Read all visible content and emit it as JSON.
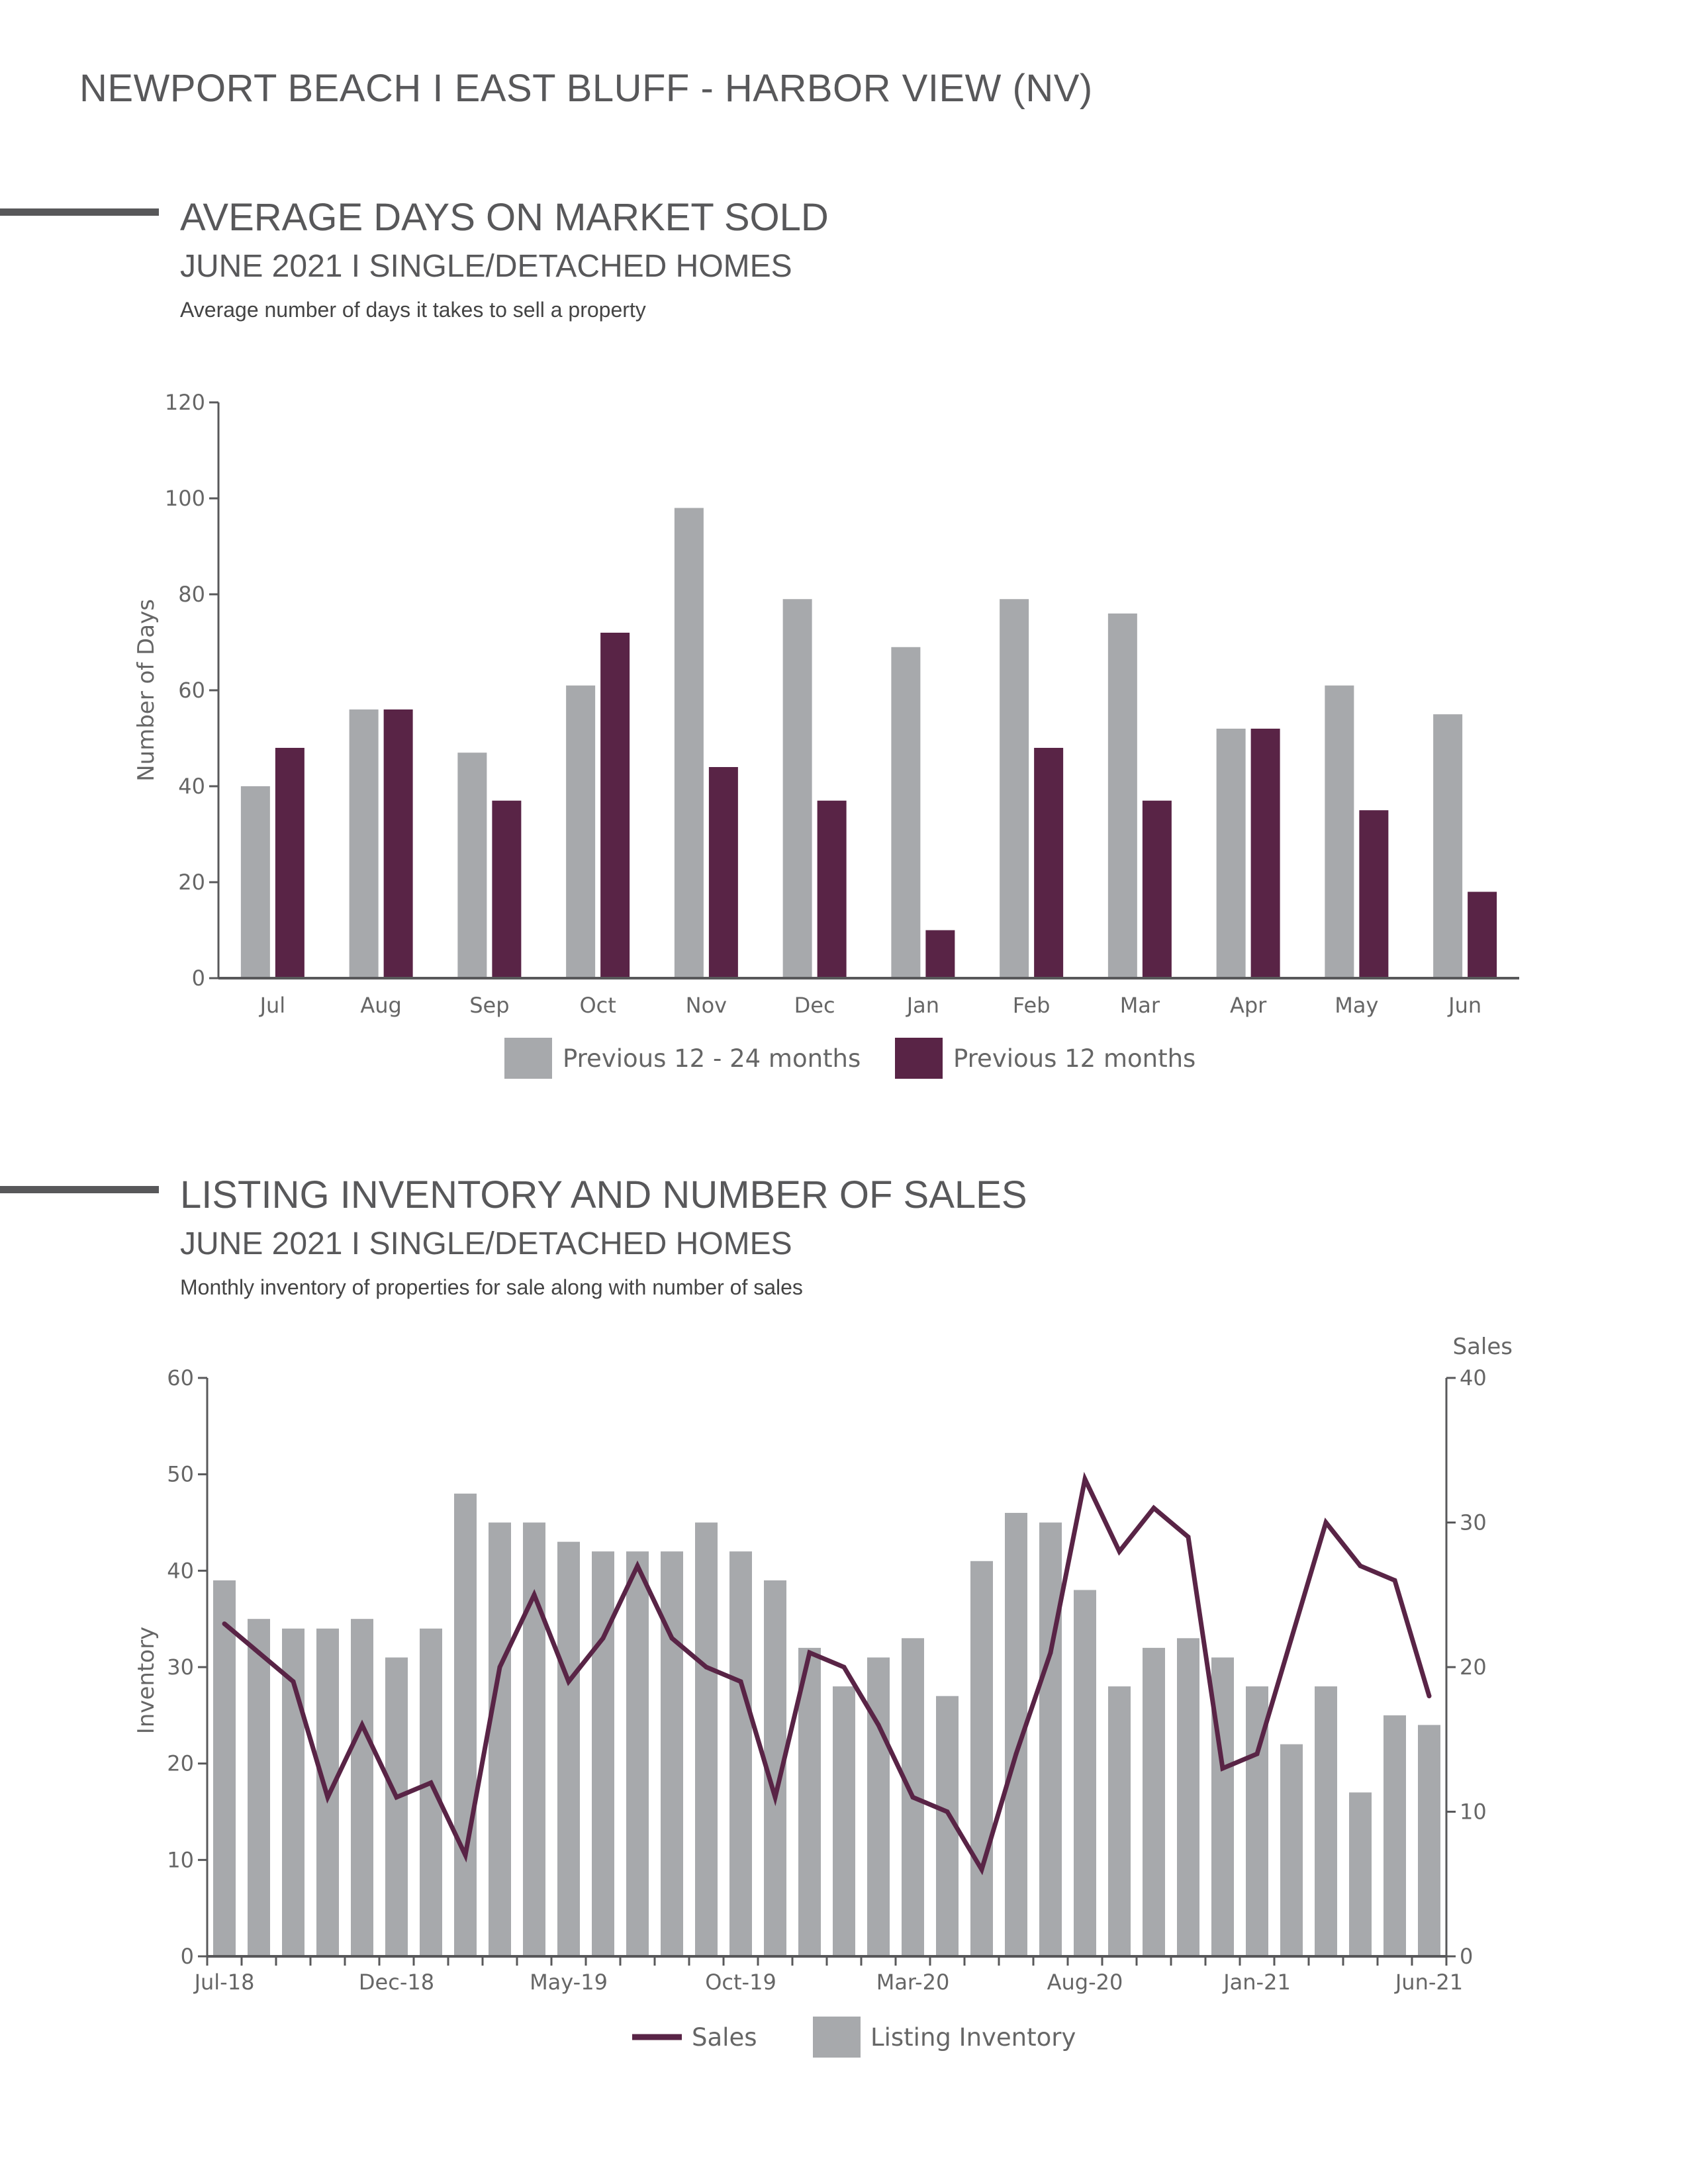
{
  "page": {
    "title": "NEWPORT BEACH I EAST BLUFF - HARBOR VIEW (NV)"
  },
  "sections": [
    {
      "title": "AVERAGE DAYS ON MARKET SOLD",
      "subtitle": "JUNE 2021 I SINGLE/DETACHED HOMES",
      "description": "Average number of days it takes to sell a property"
    },
    {
      "title": "LISTING INVENTORY AND NUMBER OF SALES",
      "subtitle": "JUNE 2021 I SINGLE/DETACHED HOMES",
      "description": "Monthly inventory of properties for sale along with number of sales"
    }
  ],
  "colors": {
    "gray": "#a7a9ac",
    "plum": "#592446",
    "axis": "#58585a",
    "text": "#58585a"
  },
  "chart_data": [
    {
      "type": "bar",
      "title": "AVERAGE DAYS ON MARKET SOLD",
      "xlabel": "",
      "ylabel": "Number of Days",
      "ylim": [
        0,
        120
      ],
      "yticks": [
        0,
        20,
        40,
        60,
        80,
        100,
        120
      ],
      "categories": [
        "Jul",
        "Aug",
        "Sep",
        "Oct",
        "Nov",
        "Dec",
        "Jan",
        "Feb",
        "Mar",
        "Apr",
        "May",
        "Jun"
      ],
      "series": [
        {
          "name": "Previous 12 - 24 months",
          "color": "#a7a9ac",
          "values": [
            40,
            56,
            47,
            61,
            98,
            79,
            69,
            79,
            76,
            52,
            61,
            55
          ]
        },
        {
          "name": "Previous 12 months",
          "color": "#592446",
          "values": [
            48,
            56,
            37,
            72,
            44,
            37,
            10,
            48,
            37,
            52,
            35,
            18
          ]
        }
      ],
      "grid": false,
      "legend": "bottom"
    },
    {
      "type": "bar",
      "title": "LISTING INVENTORY AND NUMBER OF SALES",
      "ylabel": "Inventory",
      "y2label": "Sales",
      "ylim": [
        0,
        60
      ],
      "yticks": [
        0,
        10,
        20,
        30,
        40,
        50,
        60
      ],
      "y2lim": [
        0,
        40
      ],
      "y2ticks": [
        0,
        10,
        20,
        30,
        40
      ],
      "categories": [
        "Jul-18",
        "Aug-18",
        "Sep-18",
        "Oct-18",
        "Nov-18",
        "Dec-18",
        "Jan-19",
        "Feb-19",
        "Mar-19",
        "Apr-19",
        "May-19",
        "Jun-19",
        "Jul-19",
        "Aug-19",
        "Sep-19",
        "Oct-19",
        "Nov-19",
        "Dec-19",
        "Jan-20",
        "Feb-20",
        "Mar-20",
        "Apr-20",
        "May-20",
        "Jun-20",
        "Jul-20",
        "Aug-20",
        "Sep-20",
        "Oct-20",
        "Nov-20",
        "Dec-20",
        "Jan-21",
        "Feb-21",
        "Mar-21",
        "Apr-21",
        "May-21",
        "Jun-21"
      ],
      "xtick_labels": [
        "Jul-18",
        "Dec-18",
        "May-19",
        "Oct-19",
        "Mar-20",
        "Aug-20",
        "Jan-21",
        "Jun-21"
      ],
      "series": [
        {
          "name": "Listing Inventory",
          "kind": "bar",
          "axis": "left",
          "color": "#a7a9ac",
          "values": [
            39,
            35,
            34,
            34,
            35,
            31,
            34,
            48,
            45,
            45,
            43,
            42,
            42,
            42,
            45,
            42,
            39,
            32,
            28,
            31,
            33,
            27,
            41,
            46,
            45,
            38,
            28,
            32,
            33,
            31,
            28,
            22,
            28,
            17,
            25,
            24
          ]
        },
        {
          "name": "Sales",
          "kind": "line",
          "axis": "right",
          "color": "#592446",
          "values": [
            23,
            21,
            19,
            11,
            16,
            11,
            12,
            7,
            20,
            25,
            19,
            22,
            27,
            22,
            20,
            19,
            11,
            21,
            20,
            16,
            11,
            10,
            6,
            14,
            21,
            33,
            28,
            31,
            29,
            13,
            14,
            22,
            30,
            27,
            26,
            18
          ]
        }
      ],
      "grid": false,
      "legend": "bottom"
    }
  ]
}
